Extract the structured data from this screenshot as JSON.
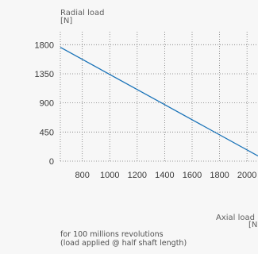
{
  "chart_data": {
    "type": "line",
    "title": "",
    "ylabel": "Radial load",
    "ylabel_unit": "[N]",
    "xlabel": "Axial load",
    "xlabel_unit": "[N]",
    "yticks": [
      "0",
      "450",
      "900",
      "1350",
      "1800"
    ],
    "xticks": [
      "800",
      "1000",
      "1200",
      "1400",
      "1600",
      "1800",
      "2000"
    ],
    "xlim": [
      640,
      2080
    ],
    "ylim": [
      0,
      2000
    ],
    "grid": true,
    "series": [
      {
        "x": [
          640,
          2080
        ],
        "y": [
          1760,
          80
        ]
      }
    ],
    "line_color": "#1a73b8"
  },
  "footnote": {
    "line1": "for 100 millions revolutions",
    "line2": "(load applied @ half shaft length)"
  }
}
